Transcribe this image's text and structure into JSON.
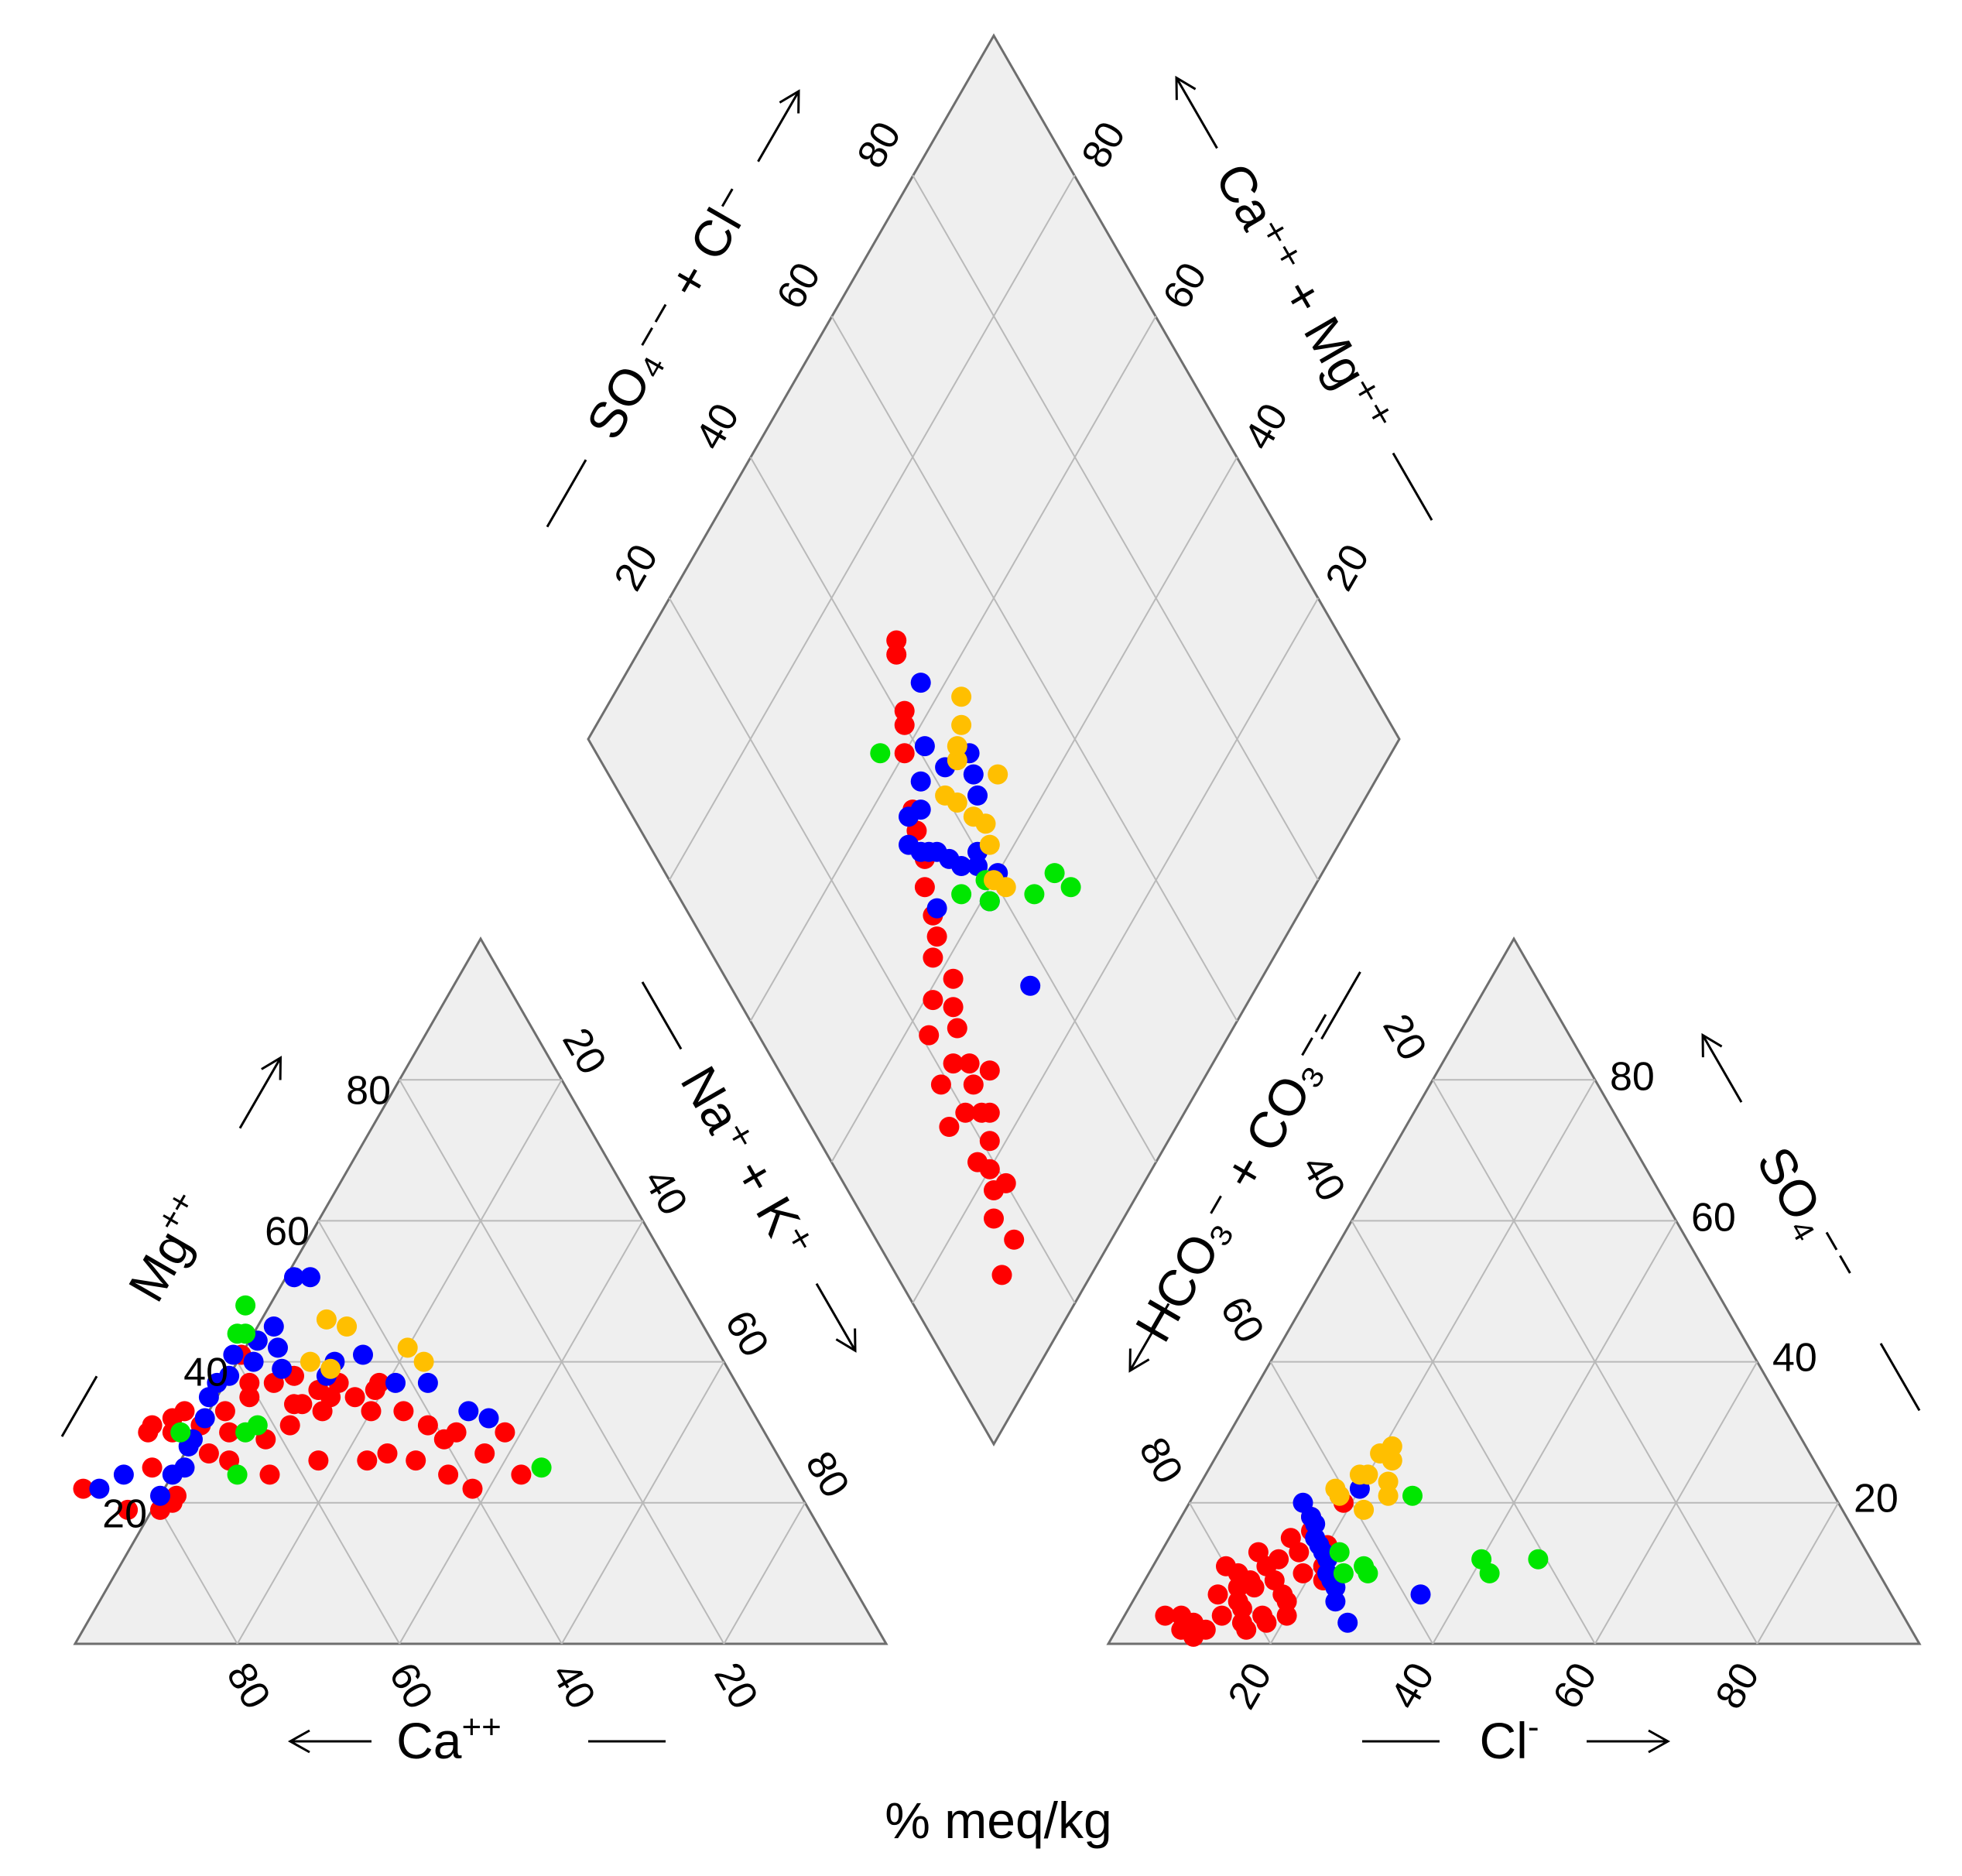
{
  "chart_data": {
    "type": "scatter",
    "subtype": "piper-trilinear",
    "xlabel": "% meq/kg",
    "ticks": [
      "20",
      "40",
      "60",
      "80"
    ],
    "axes": {
      "cation_ca": {
        "label": "Ca",
        "sup": "++",
        "direction": "left"
      },
      "cation_mg": {
        "label": "Mg",
        "sup": "++",
        "direction": "up"
      },
      "cation_nak": {
        "label": "Na⁺ + K⁺",
        "direction": "down"
      },
      "anion_cl": {
        "label": "Cl",
        "sup": "-",
        "direction": "right"
      },
      "anion_so4": {
        "label": "SO₄⁻⁻",
        "direction": "up"
      },
      "anion_hco3": {
        "label": "HCO₃⁻ + CO₃⁻⁻",
        "direction": "down"
      },
      "diamond_upper_left": {
        "label": "SO₄⁻⁻ + Cl⁻",
        "direction": "up"
      },
      "diamond_upper_right": {
        "label": "Ca⁺⁺ + Mg⁺⁺",
        "direction": "up"
      }
    },
    "series_colors": [
      "#ff0000",
      "#0000ff",
      "#00e600",
      "#ffbf00"
    ],
    "series": [
      {
        "color": "#ff0000",
        "cation": [
          [
            88,
            22
          ],
          [
            84,
            19
          ],
          [
            80,
            19
          ],
          [
            77,
            21
          ],
          [
            78,
            25
          ],
          [
            76,
            30
          ],
          [
            75,
            31
          ],
          [
            73,
            30
          ],
          [
            72,
            32
          ],
          [
            70,
            33
          ],
          [
            69,
            31
          ],
          [
            66,
            30
          ],
          [
            65,
            33
          ],
          [
            68,
            26
          ],
          [
            64,
            24
          ],
          [
            61,
            35
          ],
          [
            60,
            37
          ],
          [
            59,
            41
          ],
          [
            57,
            37
          ],
          [
            56,
            34
          ],
          [
            54,
            38
          ],
          [
            52,
            36
          ],
          [
            55,
            34
          ],
          [
            53,
            33
          ],
          [
            51,
            35
          ],
          [
            58,
            31
          ],
          [
            49,
            37
          ],
          [
            48,
            35
          ],
          [
            45,
            36
          ],
          [
            44,
            37
          ],
          [
            47,
            33
          ],
          [
            43,
            33
          ],
          [
            41,
            31
          ],
          [
            40,
            29
          ],
          [
            57,
            26
          ],
          [
            51,
            26
          ],
          [
            48,
            27
          ],
          [
            45,
            26
          ],
          [
            42,
            24
          ],
          [
            40,
            22
          ],
          [
            38,
            30
          ],
          [
            36,
            27
          ],
          [
            33,
            24
          ],
          [
            32,
            30
          ],
          [
            62,
            29
          ],
          [
            70,
            27
          ],
          [
            78,
            20
          ]
        ],
        "anion": [
          [
            7,
            4
          ],
          [
            5,
            4
          ],
          [
            9,
            3
          ],
          [
            8,
            2
          ],
          [
            10,
            1
          ],
          [
            11,
            2
          ],
          [
            12,
            4
          ],
          [
            13,
            6
          ],
          [
            14,
            5
          ],
          [
            15,
            3
          ],
          [
            16,
            2
          ],
          [
            12,
            8
          ],
          [
            13,
            9
          ],
          [
            11,
            10
          ],
          [
            14,
            11
          ],
          [
            15,
            12
          ],
          [
            17,
            13
          ],
          [
            16,
            9
          ],
          [
            18,
            7
          ],
          [
            19,
            6
          ],
          [
            17,
            4
          ],
          [
            18,
            3
          ],
          [
            20,
            4
          ],
          [
            19,
            10
          ],
          [
            14,
            8
          ],
          [
            10,
            7
          ],
          [
            9,
            11
          ],
          [
            12,
            13
          ],
          [
            15,
            15
          ],
          [
            17,
            16
          ],
          [
            20,
            14
          ],
          [
            21,
            11
          ],
          [
            22,
            9
          ],
          [
            16,
            18
          ],
          [
            18,
            21
          ],
          [
            19,
            20
          ]
        ],
        "diamond": [
          [
            17,
            88
          ],
          [
            13,
            89
          ],
          [
            20,
            83
          ],
          [
            16,
            84
          ],
          [
            18,
            82
          ],
          [
            19,
            80
          ],
          [
            21,
            78
          ],
          [
            22,
            75
          ],
          [
            18,
            78
          ],
          [
            20,
            73
          ],
          [
            23,
            72
          ],
          [
            24,
            70
          ],
          [
            22,
            68
          ],
          [
            19,
            68
          ],
          [
            17,
            72
          ],
          [
            25,
            66
          ],
          [
            26,
            64
          ],
          [
            28,
            62
          ],
          [
            24,
            61
          ],
          [
            21,
            63
          ],
          [
            27,
            58
          ],
          [
            29,
            57
          ],
          [
            30,
            55
          ],
          [
            31,
            52
          ],
          [
            33,
            50
          ],
          [
            34,
            47
          ],
          [
            35,
            45
          ],
          [
            38,
            40
          ],
          [
            40,
            38
          ],
          [
            41,
            37
          ],
          [
            44,
            32
          ],
          [
            45,
            31
          ],
          [
            23,
            76
          ],
          [
            26,
            73
          ]
        ]
      },
      {
        "color": "#0000ff",
        "cation": [
          [
            86,
            22
          ],
          [
            82,
            24
          ],
          [
            79,
            21
          ],
          [
            76,
            24
          ],
          [
            74,
            25
          ],
          [
            72,
            28
          ],
          [
            71,
            29
          ],
          [
            68,
            32
          ],
          [
            66,
            35
          ],
          [
            64,
            37
          ],
          [
            62,
            38
          ],
          [
            60,
            41
          ],
          [
            58,
            40
          ],
          [
            56,
            43
          ],
          [
            54,
            42
          ],
          [
            53,
            45
          ],
          [
            55,
            39
          ],
          [
            50,
            38
          ],
          [
            48,
            40
          ],
          [
            44,
            41
          ],
          [
            42,
            37
          ],
          [
            38,
            37
          ],
          [
            35,
            33
          ],
          [
            33,
            32
          ],
          [
            47,
            52
          ],
          [
            45,
            52
          ]
        ],
        "anion": [
          [
            14,
            20
          ],
          [
            16,
            18
          ],
          [
            17,
            17
          ],
          [
            18,
            15
          ],
          [
            19,
            14
          ],
          [
            20,
            13
          ],
          [
            21,
            12
          ],
          [
            22,
            10
          ],
          [
            23,
            9
          ],
          [
            24,
            8
          ],
          [
            25,
            6
          ],
          [
            28,
            3
          ],
          [
            35,
            7
          ],
          [
            20,
            22
          ]
        ],
        "diamond": [
          [
            41,
            60
          ],
          [
            38,
            61
          ],
          [
            39,
            57
          ],
          [
            40,
            56
          ],
          [
            37,
            55
          ],
          [
            36,
            53
          ],
          [
            35,
            51
          ],
          [
            34,
            50
          ],
          [
            33,
            49
          ],
          [
            32,
            47
          ],
          [
            36,
            46
          ],
          [
            38,
            44
          ],
          [
            42,
            46
          ],
          [
            41,
            42
          ],
          [
            45,
            37
          ],
          [
            37,
            72
          ],
          [
            44,
            52
          ],
          [
            45,
            50
          ],
          [
            46,
            48
          ],
          [
            31,
            55
          ],
          [
            34,
            45
          ]
        ]
      },
      {
        "color": "#00e600",
        "cation": [
          [
            72,
            30
          ],
          [
            64,
            30
          ],
          [
            62,
            31
          ],
          [
            58,
            44
          ],
          [
            55,
            48
          ],
          [
            57,
            44
          ],
          [
            30,
            25
          ],
          [
            68,
            24
          ]
        ],
        "anion": [
          [
            27,
            21
          ],
          [
            22,
            13
          ],
          [
            26,
            11
          ],
          [
            27,
            10
          ],
          [
            24,
            10
          ],
          [
            40,
            12
          ],
          [
            42,
            10
          ],
          [
            47,
            12
          ]
        ],
        "diamond": [
          [
            44,
            66
          ],
          [
            48,
            67
          ],
          [
            49,
            70
          ],
          [
            38,
            61
          ],
          [
            35,
            57
          ],
          [
            39,
            59
          ],
          [
            35,
            37
          ]
        ]
      },
      {
        "color": "#ffbf00",
        "cation": [
          [
            46,
            46
          ],
          [
            44,
            45
          ],
          [
            38,
            42
          ],
          [
            37,
            40
          ],
          [
            51,
            40
          ],
          [
            49,
            39
          ]
        ],
        "anion": [
          [
            19,
            24
          ],
          [
            20,
            27
          ],
          [
            21,
            28
          ],
          [
            22,
            26
          ],
          [
            23,
            23
          ],
          [
            24,
            21
          ],
          [
            22,
            19
          ],
          [
            18,
            21
          ],
          [
            17,
            22
          ],
          [
            20,
            24
          ]
        ],
        "diamond": [
          [
            41,
            62
          ],
          [
            40,
            60
          ],
          [
            42,
            57
          ],
          [
            43,
            55
          ],
          [
            42,
            53
          ],
          [
            41,
            50
          ],
          [
            40,
            48
          ],
          [
            44,
            47
          ],
          [
            45,
            46
          ],
          [
            47,
            45
          ],
          [
            48,
            53
          ],
          [
            49,
            43
          ]
        ]
      }
    ]
  }
}
